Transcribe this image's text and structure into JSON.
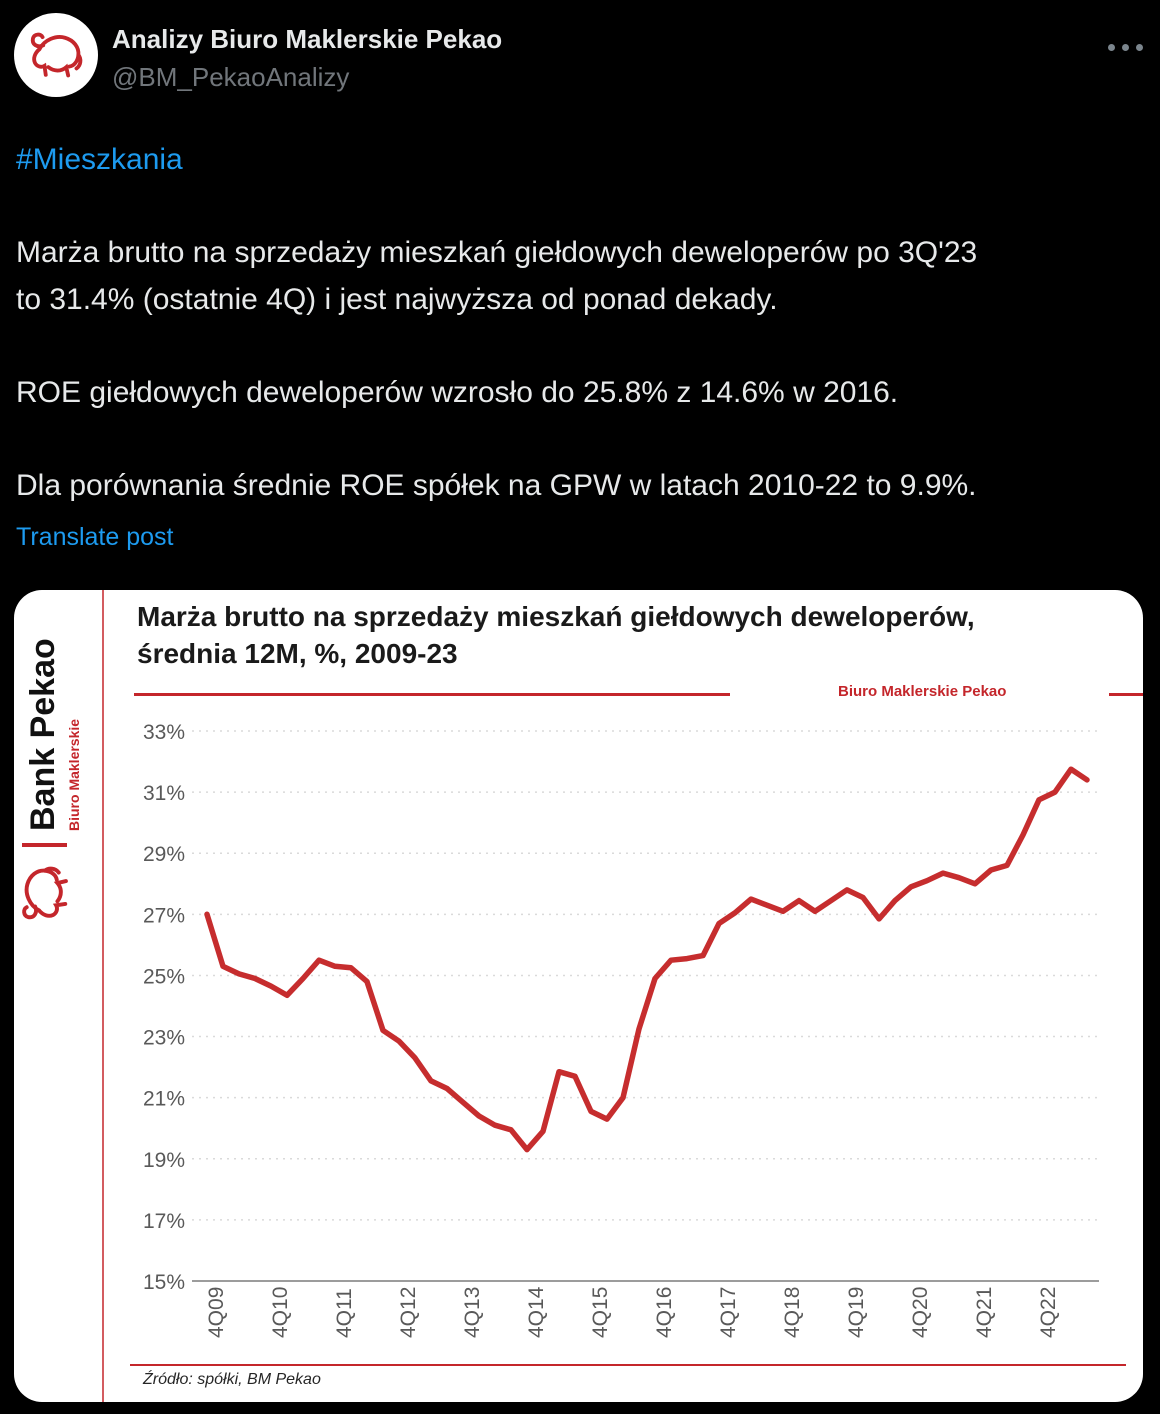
{
  "post": {
    "author": "Analizy Biuro Maklerskie Pekao",
    "handle": "@BM_PekaoAnalizy",
    "hashtag": "#Mieszkania",
    "paragraphs": [
      [
        "Marża brutto na sprzedaży mieszkań giełdowych deweloperów po 3Q'23",
        "to 31.4% (ostatnie 4Q) i jest najwyższa od ponad dekady."
      ],
      [
        "ROE giełdowych deweloperów wzrosło do 25.8% z 14.6% w 2016."
      ],
      [
        "Dla porównania średnie ROE spółek na GPW w latach 2010-22 to 9.9%."
      ]
    ],
    "translate_label": "Translate post",
    "icons": {
      "more_options": "ellipsis-horizontal",
      "avatar_logo": "pekao-bison-line-art"
    }
  },
  "card": {
    "sidebar": {
      "brand": "Bank Pekao",
      "sub_brand": "Biuro Maklerskie"
    },
    "title_lines": [
      "Marża brutto na sprzedaży mieszkań giełdowych deweloperów,",
      "średnia 12M, %, 2009-23"
    ],
    "watermark": "Biuro Maklerskie Pekao",
    "source": "Źródło: spółki, BM Pekao"
  },
  "colors": {
    "page_background": "#000000",
    "primary_text": "#e7e9ea",
    "secondary_text": "#71767b",
    "link_blue": "#1d9bf0",
    "card_background": "#ffffff",
    "brand_red": "#c4262b",
    "series_red": "#c62d2e",
    "gridline": "#dadada",
    "axis_line": "#9c9c9c",
    "tick_text": "#595959"
  },
  "chart_data": {
    "type": "line",
    "title": "Marża brutto na sprzedaży mieszkań giełdowych deweloperów, średnia 12M, %, 2009-23",
    "xlabel": "",
    "ylabel": "%",
    "x_start": "4Q09",
    "x_end": "3Q23",
    "frequency": "quarterly",
    "x_tick_labels": [
      "4Q09",
      "4Q10",
      "4Q11",
      "4Q12",
      "4Q13",
      "4Q14",
      "4Q15",
      "4Q16",
      "4Q17",
      "4Q18",
      "4Q19",
      "4Q20",
      "4Q21",
      "4Q22"
    ],
    "x_tick_every_n_points": 4,
    "ylim": [
      15,
      33
    ],
    "y_tick_step": 2,
    "y_tick_suffix": "%",
    "grid": "horizontal-dotted",
    "legend": "none",
    "series": [
      {
        "name": "Marża brutto na sprzedaży mieszkań, średnia 12M (%)",
        "color": "#c62d2e",
        "values": [
          27.0,
          25.3,
          25.05,
          24.9,
          24.65,
          24.35,
          24.9,
          25.5,
          25.3,
          25.25,
          24.8,
          23.2,
          22.85,
          22.3,
          21.55,
          21.3,
          20.85,
          20.4,
          20.1,
          19.95,
          19.3,
          19.9,
          21.85,
          21.7,
          20.55,
          20.3,
          21.0,
          23.25,
          24.9,
          25.5,
          25.55,
          25.65,
          26.7,
          27.05,
          27.5,
          27.3,
          27.1,
          27.45,
          27.1,
          27.45,
          27.8,
          27.55,
          26.85,
          27.45,
          27.9,
          28.1,
          28.35,
          28.2,
          28.0,
          28.45,
          28.6,
          29.6,
          30.75,
          31.0,
          31.75,
          31.4
        ]
      }
    ]
  }
}
